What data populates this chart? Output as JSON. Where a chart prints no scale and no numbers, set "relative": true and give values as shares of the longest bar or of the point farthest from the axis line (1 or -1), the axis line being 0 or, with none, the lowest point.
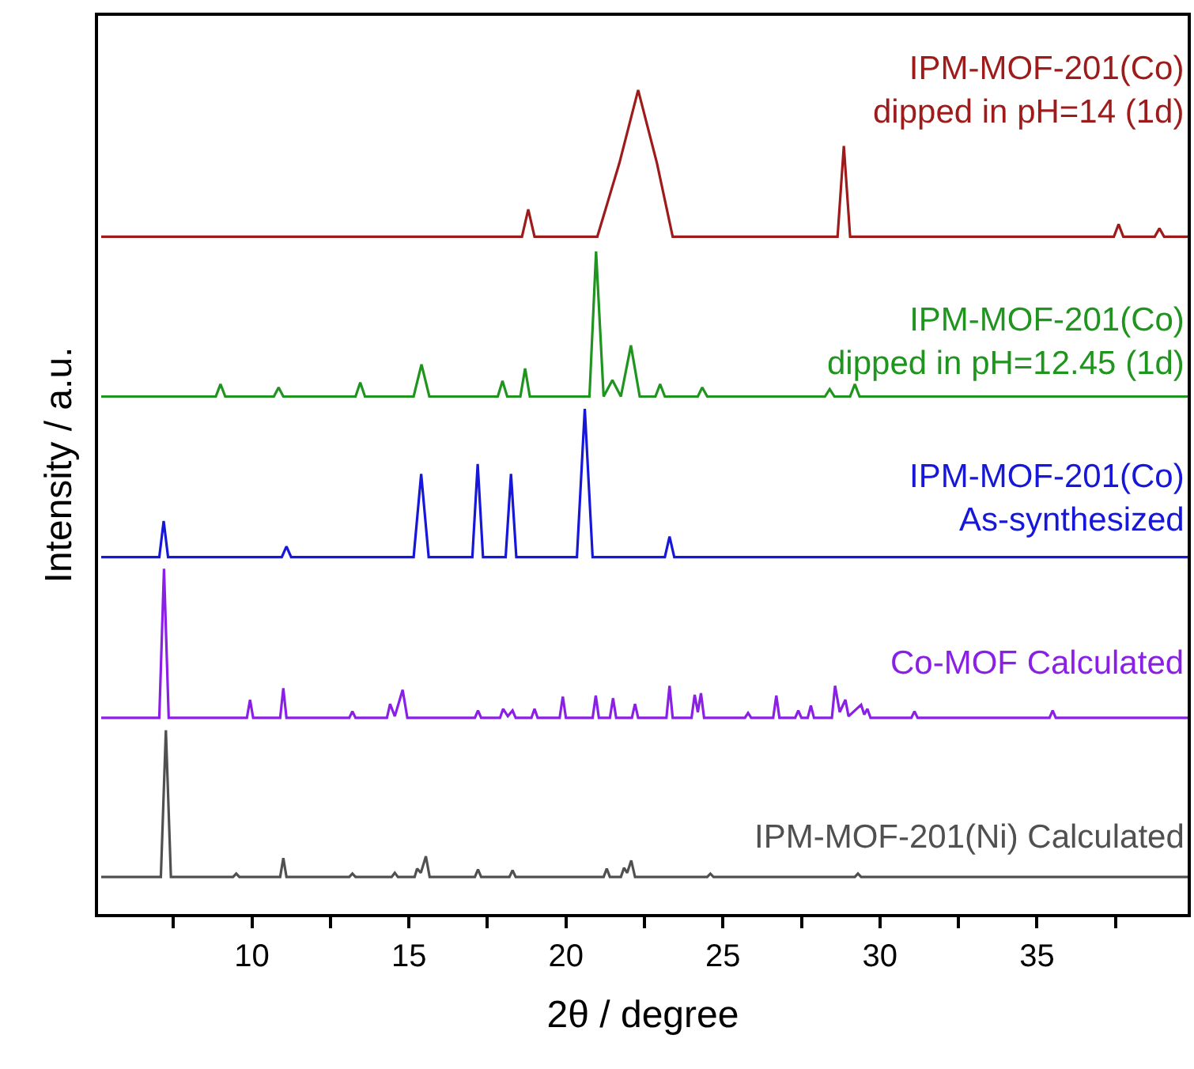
{
  "chart_data": {
    "type": "line",
    "relative": true,
    "xlabel": "2θ / degree",
    "ylabel": "Intensity / a.u.",
    "xlim": [
      5.1,
      39.8
    ],
    "xticks": [
      {
        "value": 7.5,
        "label": null
      },
      10,
      {
        "value": 12.5,
        "label": null
      },
      15,
      {
        "value": 17.5,
        "label": null
      },
      20,
      {
        "value": 22.5,
        "label": null
      },
      25,
      {
        "value": 27.5,
        "label": null
      },
      30,
      {
        "value": 32.5,
        "label": null
      },
      35,
      {
        "value": 37.5,
        "label": null
      }
    ],
    "tick_labels": "x",
    "grid": false,
    "legend": false,
    "marker": "none",
    "line_style": "solid",
    "series": [
      {
        "name": "IPM-MOF-201(Co)\ndipped in pH=14 (1d)",
        "color": "#9e1b1b",
        "x": [
          5.2,
          18.6,
          18.8,
          19.0,
          21.0,
          21.7,
          22.3,
          22.9,
          23.4,
          28.65,
          28.85,
          29.05,
          37.45,
          37.6,
          37.75,
          38.75,
          38.9,
          39.05,
          39.8
        ],
        "values": [
          0.822,
          0.822,
          0.855,
          0.822,
          0.822,
          0.911,
          1.0,
          0.911,
          0.822,
          0.822,
          0.932,
          0.822,
          0.822,
          0.837,
          0.822,
          0.822,
          0.832,
          0.822,
          0.822
        ]
      },
      {
        "name": "IPM-MOF-201(Co)\ndipped in pH=12.45 (1d)",
        "color": "#1f951f",
        "x": [
          5.2,
          8.85,
          9.0,
          9.15,
          10.7,
          10.85,
          11.0,
          13.3,
          13.45,
          13.6,
          15.15,
          15.4,
          15.65,
          17.83,
          17.98,
          18.13,
          18.55,
          18.7,
          18.85,
          20.75,
          20.96,
          21.2,
          21.48,
          21.75,
          22.07,
          22.35,
          22.85,
          23.0,
          23.15,
          24.2,
          24.34,
          24.5,
          28.25,
          28.4,
          28.55,
          29.05,
          29.2,
          29.35,
          39.8
        ],
        "values": [
          0.628,
          0.628,
          0.643,
          0.628,
          0.628,
          0.639,
          0.628,
          0.628,
          0.645,
          0.628,
          0.628,
          0.667,
          0.628,
          0.628,
          0.647,
          0.628,
          0.628,
          0.662,
          0.628,
          0.628,
          0.804,
          0.628,
          0.648,
          0.628,
          0.69,
          0.628,
          0.628,
          0.643,
          0.628,
          0.628,
          0.639,
          0.628,
          0.628,
          0.637,
          0.628,
          0.628,
          0.643,
          0.628,
          0.628
        ]
      },
      {
        "name": "IPM-MOF-201(Co)\nAs-synthesized",
        "color": "#1717d9",
        "x": [
          5.2,
          7.05,
          7.19,
          7.33,
          10.95,
          11.1,
          11.25,
          15.15,
          15.39,
          15.63,
          17.02,
          17.19,
          17.36,
          18.08,
          18.25,
          18.42,
          20.35,
          20.6,
          20.85,
          23.15,
          23.3,
          23.45,
          39.8
        ],
        "values": [
          0.433,
          0.433,
          0.477,
          0.433,
          0.433,
          0.446,
          0.433,
          0.433,
          0.534,
          0.433,
          0.433,
          0.546,
          0.433,
          0.433,
          0.534,
          0.433,
          0.433,
          0.613,
          0.433,
          0.433,
          0.458,
          0.433,
          0.433
        ]
      },
      {
        "name": "Co-MOF Calculated",
        "color": "#8a1fe6",
        "x": [
          5.2,
          7.05,
          7.2,
          7.35,
          9.84,
          9.94,
          10.04,
          10.9,
          11.0,
          11.1,
          13.1,
          13.2,
          13.3,
          14.3,
          14.4,
          14.55,
          14.8,
          14.95,
          17.1,
          17.2,
          17.3,
          17.9,
          18.0,
          18.15,
          18.3,
          18.4,
          18.9,
          19.0,
          19.1,
          19.8,
          19.9,
          20.0,
          20.85,
          20.95,
          21.05,
          21.4,
          21.5,
          21.6,
          22.1,
          22.2,
          22.3,
          23.2,
          23.3,
          23.4,
          24.0,
          24.1,
          24.2,
          24.3,
          24.4,
          25.7,
          25.8,
          25.9,
          26.6,
          26.7,
          26.8,
          27.3,
          27.4,
          27.5,
          27.7,
          27.8,
          27.9,
          28.47,
          28.57,
          28.72,
          28.9,
          29.0,
          29.4,
          29.5,
          29.6,
          29.7,
          31.0,
          31.1,
          31.2,
          35.4,
          35.5,
          35.6,
          39.8
        ],
        "values": [
          0.238,
          0.238,
          0.419,
          0.238,
          0.238,
          0.26,
          0.238,
          0.238,
          0.274,
          0.238,
          0.238,
          0.246,
          0.238,
          0.238,
          0.255,
          0.24,
          0.272,
          0.238,
          0.238,
          0.247,
          0.238,
          0.238,
          0.249,
          0.24,
          0.247,
          0.238,
          0.238,
          0.249,
          0.238,
          0.238,
          0.264,
          0.238,
          0.238,
          0.265,
          0.238,
          0.238,
          0.262,
          0.238,
          0.238,
          0.255,
          0.238,
          0.238,
          0.277,
          0.238,
          0.238,
          0.266,
          0.245,
          0.268,
          0.238,
          0.238,
          0.244,
          0.238,
          0.238,
          0.265,
          0.238,
          0.238,
          0.247,
          0.238,
          0.238,
          0.253,
          0.238,
          0.238,
          0.277,
          0.245,
          0.26,
          0.24,
          0.254,
          0.242,
          0.249,
          0.238,
          0.238,
          0.246,
          0.238,
          0.238,
          0.247,
          0.238,
          0.238
        ]
      },
      {
        "name": "IPM-MOF-201(Ni) Calculated",
        "color": "#505050",
        "x": [
          5.2,
          7.1,
          7.26,
          7.42,
          9.4,
          9.5,
          9.6,
          10.9,
          11.0,
          11.1,
          13.1,
          13.2,
          13.3,
          14.45,
          14.55,
          14.65,
          15.18,
          15.26,
          15.38,
          15.54,
          15.66,
          17.1,
          17.2,
          17.3,
          18.2,
          18.3,
          18.4,
          21.2,
          21.3,
          21.4,
          21.75,
          21.85,
          21.95,
          22.08,
          22.2,
          24.5,
          24.6,
          24.7,
          29.2,
          29.3,
          29.4,
          39.8
        ],
        "values": [
          0.045,
          0.045,
          0.223,
          0.045,
          0.045,
          0.049,
          0.045,
          0.045,
          0.068,
          0.045,
          0.045,
          0.049,
          0.045,
          0.045,
          0.05,
          0.045,
          0.045,
          0.055,
          0.05,
          0.07,
          0.045,
          0.045,
          0.054,
          0.045,
          0.045,
          0.053,
          0.045,
          0.045,
          0.055,
          0.045,
          0.045,
          0.056,
          0.05,
          0.065,
          0.045,
          0.045,
          0.049,
          0.045,
          0.045,
          0.049,
          0.045,
          0.045
        ]
      }
    ]
  }
}
